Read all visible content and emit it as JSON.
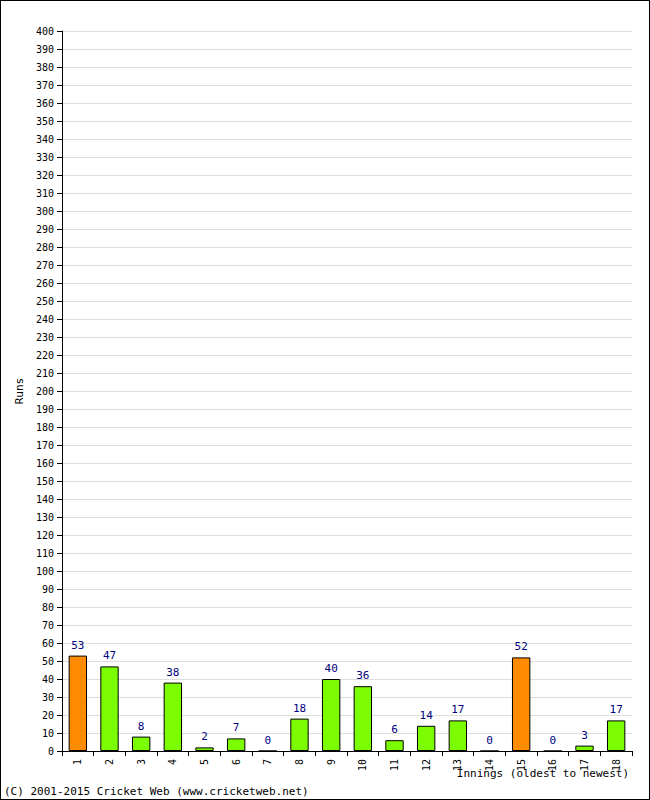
{
  "chart_data": {
    "type": "bar",
    "categories": [
      "1",
      "2",
      "3",
      "4",
      "5",
      "6",
      "7",
      "8",
      "9",
      "10",
      "11",
      "12",
      "13",
      "14",
      "15",
      "16",
      "17",
      "18"
    ],
    "values": [
      53,
      47,
      8,
      38,
      2,
      7,
      0,
      18,
      40,
      36,
      6,
      14,
      17,
      0,
      52,
      0,
      3,
      17
    ],
    "colors": [
      "#ff8c00",
      "#7cfc00",
      "#7cfc00",
      "#7cfc00",
      "#7cfc00",
      "#7cfc00",
      "#7cfc00",
      "#7cfc00",
      "#7cfc00",
      "#7cfc00",
      "#7cfc00",
      "#7cfc00",
      "#7cfc00",
      "#7cfc00",
      "#ff8c00",
      "#7cfc00",
      "#7cfc00",
      "#7cfc00"
    ],
    "y_label": "Runs",
    "x_label": "Innings (oldest to newest)",
    "annotation": "(C) 2001-2015 Cricket Web (www.cricketweb.net)",
    "ylim": [
      0,
      400
    ],
    "yticks": [
      0,
      10,
      20,
      30,
      40,
      50,
      60,
      70,
      80,
      90,
      100,
      110,
      120,
      130,
      140,
      150,
      160,
      170,
      180,
      190,
      200,
      210,
      220,
      230,
      240,
      250,
      260,
      270,
      280,
      290,
      300,
      310,
      320,
      330,
      340,
      350,
      360,
      370,
      380,
      390,
      400
    ],
    "grid": true,
    "data_labels": true
  }
}
